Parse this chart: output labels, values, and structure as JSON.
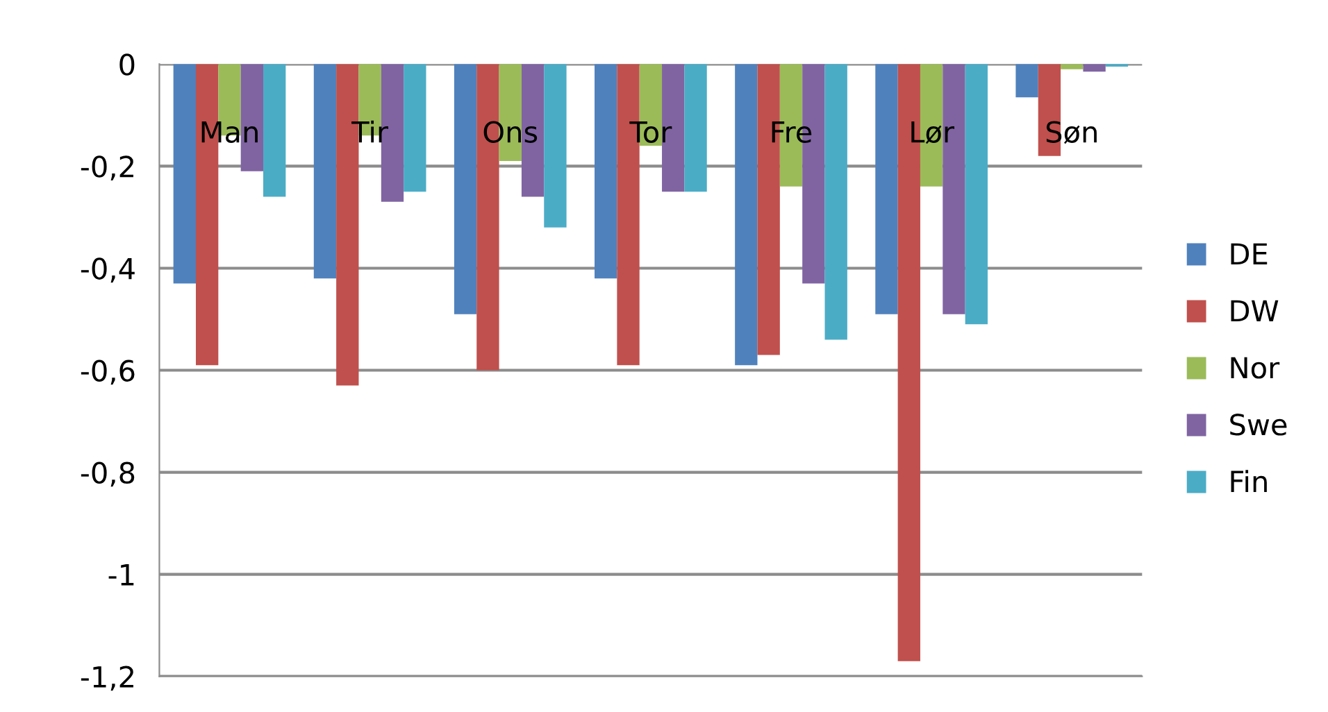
{
  "chart_data": {
    "type": "bar",
    "categories": [
      "Man",
      "Tir",
      "Ons",
      "Tor",
      "Fre",
      "Lør",
      "Søn"
    ],
    "series": [
      {
        "name": "DE",
        "color": "#4f81bd",
        "values": [
          -0.43,
          -0.42,
          -0.49,
          -0.42,
          -0.59,
          -0.49,
          -0.065
        ]
      },
      {
        "name": "DW",
        "color": "#c0504d",
        "values": [
          -0.59,
          -0.63,
          -0.6,
          -0.59,
          -0.57,
          -1.17,
          -0.18
        ]
      },
      {
        "name": "Nor",
        "color": "#9bbb59",
        "values": [
          -0.14,
          -0.14,
          -0.19,
          -0.16,
          -0.24,
          -0.24,
          -0.01
        ]
      },
      {
        "name": "Swe",
        "color": "#8064a2",
        "values": [
          -0.21,
          -0.27,
          -0.26,
          -0.25,
          -0.43,
          -0.49,
          -0.015
        ]
      },
      {
        "name": "Fin",
        "color": "#4bacc6",
        "values": [
          -0.26,
          -0.25,
          -0.32,
          -0.25,
          -0.54,
          -0.51,
          -0.005
        ]
      }
    ],
    "ylim": [
      -1.2,
      0
    ],
    "yticks": [
      {
        "value": -1.2,
        "label": "-1,2"
      },
      {
        "value": -1,
        "label": "-1"
      },
      {
        "value": -0.8,
        "label": "-0,8"
      },
      {
        "value": -0.6,
        "label": "-0,6"
      },
      {
        "value": -0.4,
        "label": "-0,4"
      },
      {
        "value": -0.2,
        "label": "-0,2"
      },
      {
        "value": 0,
        "label": "0"
      }
    ],
    "grid": "y",
    "legend": "right"
  }
}
